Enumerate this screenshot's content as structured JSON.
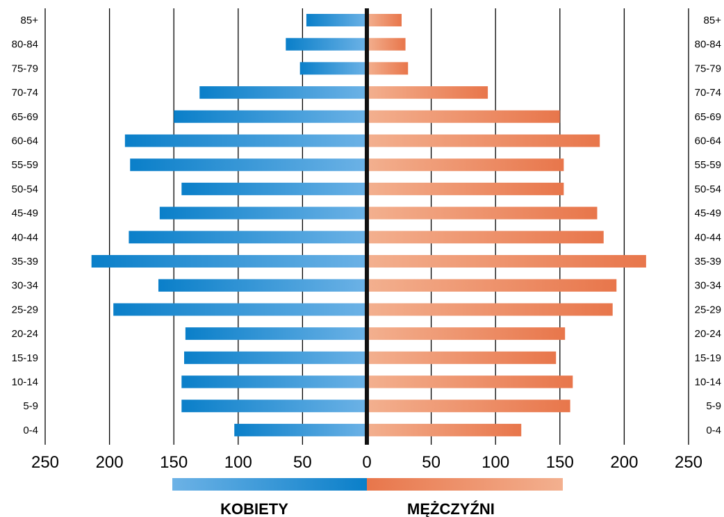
{
  "chart_data": {
    "type": "bar",
    "categories": [
      "85+",
      "80-84",
      "75-79",
      "70-74",
      "65-69",
      "60-64",
      "55-59",
      "50-54",
      "45-49",
      "40-44",
      "35-39",
      "30-34",
      "25-29",
      "20-24",
      "15-19",
      "10-14",
      "5-9",
      "0-4"
    ],
    "series": [
      {
        "name": "KOBIETY",
        "values": [
          47,
          63,
          52,
          130,
          150,
          188,
          184,
          144,
          161,
          185,
          214,
          162,
          197,
          141,
          142,
          144,
          144,
          103
        ]
      },
      {
        "name": "MĘŻCZYŹNI",
        "values": [
          27,
          30,
          32,
          94,
          150,
          181,
          153,
          153,
          179,
          184,
          217,
          194,
          191,
          154,
          147,
          160,
          158,
          120
        ]
      }
    ],
    "x_ticks": [
      "250",
      "200",
      "150",
      "100",
      "50",
      "0",
      "50",
      "100",
      "150",
      "200",
      "250"
    ],
    "xlim": [
      -250,
      250
    ],
    "grid": true,
    "legend": "bottom-center",
    "colors": {
      "women_dark": "#0a7fc9",
      "women_light": "#6cb2e6",
      "men_dark": "#e8764b",
      "men_light": "#f3b08f",
      "axis": "#111111"
    }
  }
}
